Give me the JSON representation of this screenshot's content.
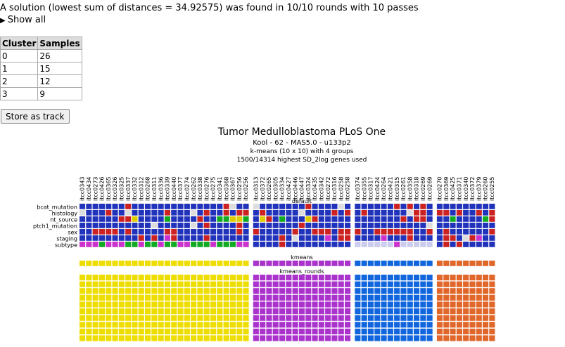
{
  "summary": "A solution (lowest sum of distances = 34.92575) was found in 10/10 rounds with 10 passes",
  "show_all": "Show all",
  "table": {
    "headers": [
      "Cluster",
      "Samples"
    ],
    "rows": [
      [
        "0",
        "26"
      ],
      [
        "1",
        "15"
      ],
      [
        "2",
        "12"
      ],
      [
        "3",
        "9"
      ]
    ]
  },
  "store_button": "Store as track",
  "chart": {
    "title": "Tumor Medulloblastoma PLoS One",
    "subtitles": [
      "Kool - 62 - MAS5.0 - u133p2",
      "k-means (10 x 10) with 4 groups",
      "1500/14314 highest SD_2log genes used"
    ],
    "section_default": "default",
    "section_kmeans": "kmeans",
    "section_rounds": "kmeans_rounds",
    "row_labels": [
      "bcat_mutation",
      "histology",
      "nt_source",
      "ptch1_mutation",
      "sex",
      "staging",
      "subtype"
    ],
    "groups": [
      {
        "samples": [
          "itcc0343",
          "itcc0434",
          "itcc0273",
          "itcc0426",
          "itcc0365",
          "itcc0326",
          "itcc0325",
          "itcc0337",
          "itcc0332",
          "itcc0312",
          "itcc0268",
          "itcc0311",
          "itcc0336",
          "itcc0339",
          "itcc0440",
          "itcc0377",
          "itcc0274",
          "itcc0262",
          "itcc0338",
          "itcc0276",
          "itcc0275",
          "itcc0341",
          "itcc0368",
          "itcc0367",
          "itcc0256",
          "itcc0256b"
        ],
        "color": "#eedd00"
      },
      {
        "samples": [
          "itcc0313",
          "itcc0372",
          "itcc0265",
          "itcc0305",
          "itcc0334",
          "itcc0427",
          "itcc0446",
          "itcc0447",
          "itcc0324",
          "itcc0435",
          "itcc0342",
          "itcc0272",
          "itcc0316",
          "itcc0258",
          "itcc0258b"
        ],
        "color": "#aa33cc"
      },
      {
        "samples": [
          "itcc0374",
          "itcc0355",
          "itcc0317",
          "itcc0424",
          "itcc0264",
          "itcc0421",
          "itcc0315",
          "itcc0261",
          "itcc0358",
          "itcc0318",
          "itcc0269",
          "itcc0269b"
        ],
        "color": "#1166dd"
      },
      {
        "samples": [
          "itcc0270",
          "itcc0369",
          "itcc0425",
          "itcc0371",
          "itcc0340",
          "itcc0372",
          "itcc0379",
          "itcc0260",
          "itcc0255"
        ],
        "color": "#e0662a"
      }
    ],
    "palette": {
      "blue": "#2233bb",
      "red": "#cc2222",
      "green": "#11aa22",
      "yellow": "#ddcc00",
      "grey": "#dddddd",
      "magenta": "#cc33cc",
      "lavender": "#ccccee"
    },
    "rounds_rows": 10
  }
}
